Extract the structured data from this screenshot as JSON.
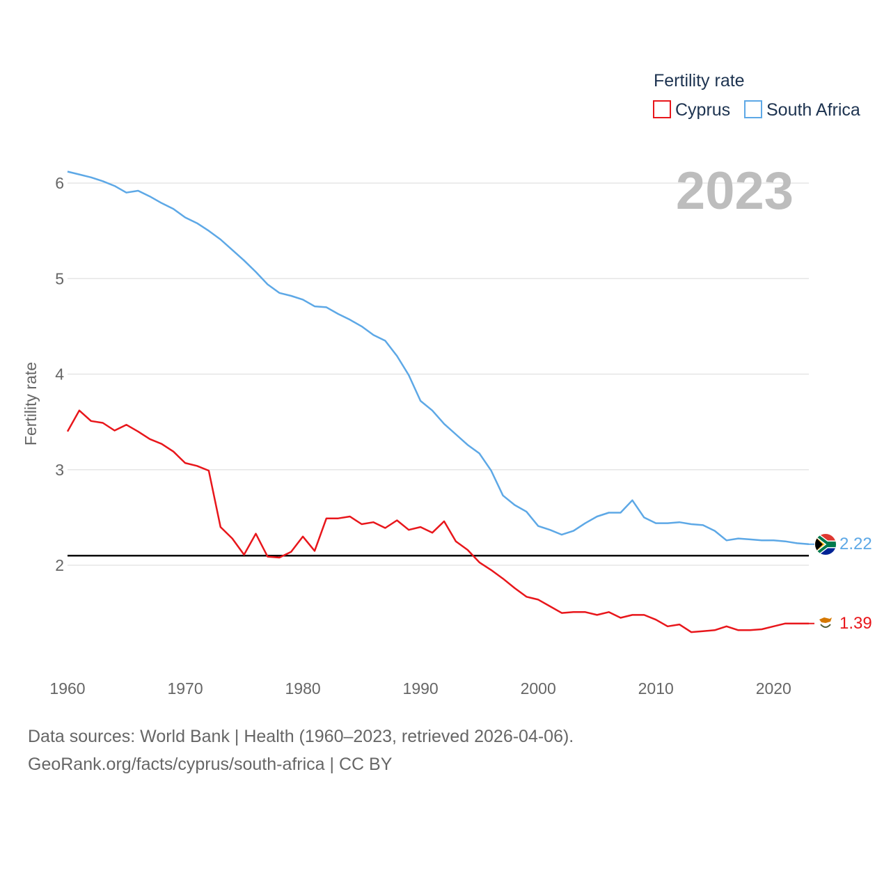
{
  "chart_data": {
    "type": "line",
    "title": "Fertility rate",
    "ylabel": "Fertility rate",
    "xlabel": "",
    "xlim": [
      1960,
      2023
    ],
    "ylim": [
      1.0,
      6.3
    ],
    "x_ticks": [
      "1960",
      "1970",
      "1980",
      "1990",
      "2000",
      "2010",
      "2020"
    ],
    "y_ticks": [
      "2",
      "3",
      "4",
      "5",
      "6"
    ],
    "current_year": "2023",
    "reference_line": 2.1,
    "x": [
      1960,
      1961,
      1962,
      1963,
      1964,
      1965,
      1966,
      1967,
      1968,
      1969,
      1970,
      1971,
      1972,
      1973,
      1974,
      1975,
      1976,
      1977,
      1978,
      1979,
      1980,
      1981,
      1982,
      1983,
      1984,
      1985,
      1986,
      1987,
      1988,
      1989,
      1990,
      1991,
      1992,
      1993,
      1994,
      1995,
      1996,
      1997,
      1998,
      1999,
      2000,
      2001,
      2002,
      2003,
      2004,
      2005,
      2006,
      2007,
      2008,
      2009,
      2010,
      2011,
      2012,
      2013,
      2014,
      2015,
      2016,
      2017,
      2018,
      2019,
      2020,
      2021,
      2022,
      2023
    ],
    "series": [
      {
        "name": "Cyprus",
        "color": "#e8161b",
        "end_label": "1.39",
        "values": [
          3.4,
          3.62,
          3.51,
          3.49,
          3.41,
          3.47,
          3.4,
          3.32,
          3.27,
          3.19,
          3.07,
          3.04,
          2.99,
          2.4,
          2.28,
          2.11,
          2.33,
          2.09,
          2.08,
          2.14,
          2.3,
          2.15,
          2.49,
          2.49,
          2.51,
          2.43,
          2.45,
          2.39,
          2.47,
          2.37,
          2.4,
          2.34,
          2.46,
          2.25,
          2.16,
          2.03,
          1.95,
          1.86,
          1.76,
          1.67,
          1.64,
          1.57,
          1.5,
          1.51,
          1.51,
          1.48,
          1.51,
          1.45,
          1.48,
          1.48,
          1.43,
          1.36,
          1.38,
          1.3,
          1.31,
          1.32,
          1.36,
          1.32,
          1.32,
          1.33,
          1.36,
          1.39,
          1.39,
          1.39
        ]
      },
      {
        "name": "South Africa",
        "color": "#5da8e6",
        "end_label": "2.22",
        "values": [
          6.12,
          6.09,
          6.06,
          6.02,
          5.97,
          5.9,
          5.92,
          5.86,
          5.79,
          5.73,
          5.64,
          5.58,
          5.5,
          5.41,
          5.3,
          5.19,
          5.07,
          4.94,
          4.85,
          4.82,
          4.78,
          4.71,
          4.7,
          4.63,
          4.57,
          4.5,
          4.41,
          4.35,
          4.19,
          3.99,
          3.72,
          3.62,
          3.48,
          3.37,
          3.26,
          3.17,
          2.99,
          2.73,
          2.63,
          2.56,
          2.41,
          2.37,
          2.32,
          2.36,
          2.44,
          2.51,
          2.55,
          2.55,
          2.68,
          2.5,
          2.44,
          2.44,
          2.45,
          2.43,
          2.42,
          2.36,
          2.26,
          2.28,
          2.27,
          2.26,
          2.26,
          2.25,
          2.23,
          2.22
        ]
      }
    ],
    "legend": {
      "title": "Fertility rate",
      "position": "top-right",
      "entries": [
        "Cyprus",
        "South Africa"
      ]
    }
  },
  "flags": {
    "south_africa": {
      "colors": [
        "#de3831",
        "#002395",
        "#007a4d",
        "#000000",
        "#ffb612",
        "#ffffff"
      ]
    },
    "cyprus": {
      "colors": [
        "#ffffff",
        "#d57800",
        "#4e5b31"
      ]
    }
  },
  "footer": {
    "line1": "Data sources: World Bank | Health (1960–2023, retrieved 2026-04-06).",
    "line2": "GeoRank.org/facts/cyprus/south-africa | CC BY"
  }
}
